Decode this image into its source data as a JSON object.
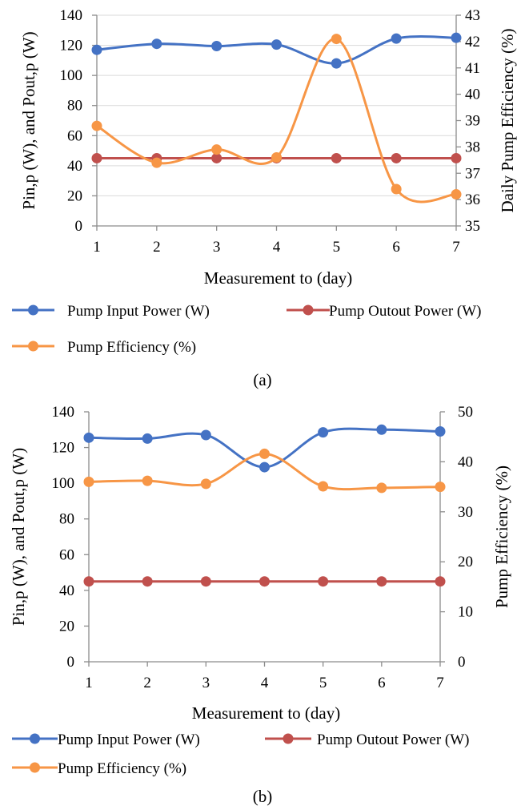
{
  "chart_data": [
    {
      "type": "line",
      "panel_label": "(a)",
      "x": [
        1,
        2,
        3,
        4,
        5,
        6,
        7
      ],
      "xlabel": "Measurement to (day)",
      "ylabel": "Pin,p (W), and Pout,p (W)",
      "ylabel_right": "Daily Pump Efficiency  (%)",
      "ylim": [
        0,
        140
      ],
      "yticks": [
        0,
        20,
        40,
        60,
        80,
        100,
        120,
        140
      ],
      "ylim_right": [
        35,
        43
      ],
      "yticks_right": [
        35,
        36,
        37,
        38,
        39,
        40,
        41,
        42,
        43
      ],
      "grid": true,
      "legend_position": "bottom",
      "series": [
        {
          "name": "Pump Input Power (W)",
          "axis": "left",
          "color": "#4472C4",
          "values": [
            117,
            121,
            119.5,
            120.5,
            108,
            124.5,
            125
          ]
        },
        {
          "name": "Pump Outout Power (W)",
          "axis": "left",
          "color": "#C0504D",
          "values": [
            45,
            45,
            45,
            45,
            45,
            45,
            45
          ]
        },
        {
          "name": "Pump Efficiency (%)",
          "axis": "right",
          "color": "#F79646",
          "values": [
            38.8,
            37.4,
            37.9,
            37.6,
            42.1,
            36.4,
            36.2
          ]
        }
      ]
    },
    {
      "type": "line",
      "panel_label": "(b)",
      "x": [
        1,
        2,
        3,
        4,
        5,
        6,
        7
      ],
      "xlabel": "Measurement to (day)",
      "ylabel": "Pin,p (W), and Pout,p (W)",
      "ylabel_right": "Pump Efficiency (%)",
      "ylim": [
        0,
        140
      ],
      "yticks": [
        0,
        20,
        40,
        60,
        80,
        100,
        120,
        140
      ],
      "ylim_right": [
        0,
        50
      ],
      "yticks_right": [
        0,
        10,
        20,
        30,
        40,
        50
      ],
      "grid": false,
      "legend_position": "bottom",
      "series": [
        {
          "name": "Pump Input Power (W)",
          "axis": "left",
          "color": "#4472C4",
          "values": [
            125.5,
            125,
            127,
            109,
            128.5,
            130,
            129
          ]
        },
        {
          "name": "Pump Outout Power (W)",
          "axis": "left",
          "color": "#C0504D",
          "values": [
            45,
            45,
            45,
            45,
            45,
            45,
            45
          ]
        },
        {
          "name": "Pump Efficiency (%)",
          "axis": "right",
          "color": "#F79646",
          "values": [
            36,
            36.2,
            35.6,
            41.6,
            35.1,
            34.8,
            35
          ]
        }
      ]
    }
  ]
}
